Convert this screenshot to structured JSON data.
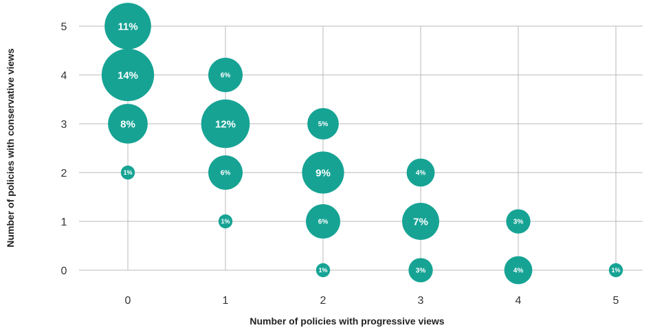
{
  "chart_data": {
    "type": "scatter",
    "xlabel": "Number of policies with progressive views",
    "ylabel": "Number of policies with conservative views",
    "x_ticks": [
      "0",
      "1",
      "2",
      "3",
      "4",
      "5"
    ],
    "y_ticks": [
      "0",
      "1",
      "2",
      "3",
      "4",
      "5"
    ],
    "xlim": [
      0,
      5
    ],
    "ylim": [
      0,
      5
    ],
    "grid": true,
    "bubble_color": "#16a394",
    "points": [
      {
        "x": 0,
        "y": 5,
        "value": 11,
        "label": "11%"
      },
      {
        "x": 0,
        "y": 4,
        "value": 14,
        "label": "14%"
      },
      {
        "x": 0,
        "y": 3,
        "value": 8,
        "label": "8%"
      },
      {
        "x": 0,
        "y": 2,
        "value": 1,
        "label": "1%"
      },
      {
        "x": 1,
        "y": 4,
        "value": 6,
        "label": "6%"
      },
      {
        "x": 1,
        "y": 3,
        "value": 12,
        "label": "12%"
      },
      {
        "x": 1,
        "y": 2,
        "value": 6,
        "label": "6%"
      },
      {
        "x": 1,
        "y": 1,
        "value": 1,
        "label": "1%"
      },
      {
        "x": 2,
        "y": 3,
        "value": 5,
        "label": "5%"
      },
      {
        "x": 2,
        "y": 2,
        "value": 9,
        "label": "9%"
      },
      {
        "x": 2,
        "y": 1,
        "value": 6,
        "label": "6%"
      },
      {
        "x": 2,
        "y": 0,
        "value": 1,
        "label": "1%"
      },
      {
        "x": 3,
        "y": 2,
        "value": 4,
        "label": "4%"
      },
      {
        "x": 3,
        "y": 1,
        "value": 7,
        "label": "7%"
      },
      {
        "x": 3,
        "y": 0,
        "value": 3,
        "label": "3%"
      },
      {
        "x": 4,
        "y": 1,
        "value": 3,
        "label": "3%"
      },
      {
        "x": 4,
        "y": 0,
        "value": 4,
        "label": "4%"
      },
      {
        "x": 5,
        "y": 0,
        "value": 1,
        "label": "1%"
      }
    ]
  }
}
